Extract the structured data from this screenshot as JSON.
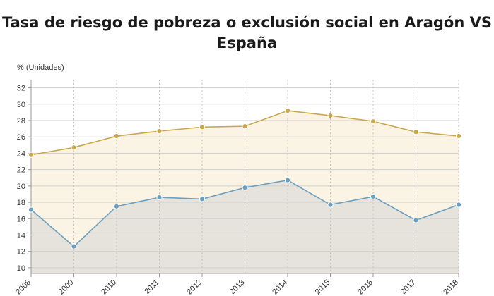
{
  "chart_data": {
    "type": "line",
    "title_lines": [
      "Tasa de riesgo de pobreza o exclusión social en Aragón VS",
      "España"
    ],
    "ylabel": "% (Unidades)",
    "xlabel": "",
    "x": [
      "2008",
      "2009",
      "2010",
      "2011",
      "2012",
      "2013",
      "2014",
      "2015",
      "2016",
      "2017",
      "2018"
    ],
    "yticks": [
      10,
      12,
      14,
      16,
      18,
      20,
      22,
      24,
      26,
      28,
      30,
      32
    ],
    "ylim": [
      9.3,
      33
    ],
    "grid": true,
    "legend": "none",
    "series": [
      {
        "values": [
          23.8,
          24.7,
          26.1,
          26.7,
          27.2,
          27.3,
          29.2,
          28.6,
          27.9,
          26.6,
          26.1
        ],
        "color": "#c9a74a",
        "fill": "#fbf3e3"
      },
      {
        "values": [
          17.1,
          12.6,
          17.5,
          18.6,
          18.4,
          19.8,
          20.7,
          17.7,
          18.7,
          15.8,
          17.7
        ],
        "color": "#6a9fc0",
        "fill": "#e6e3dc"
      }
    ]
  }
}
